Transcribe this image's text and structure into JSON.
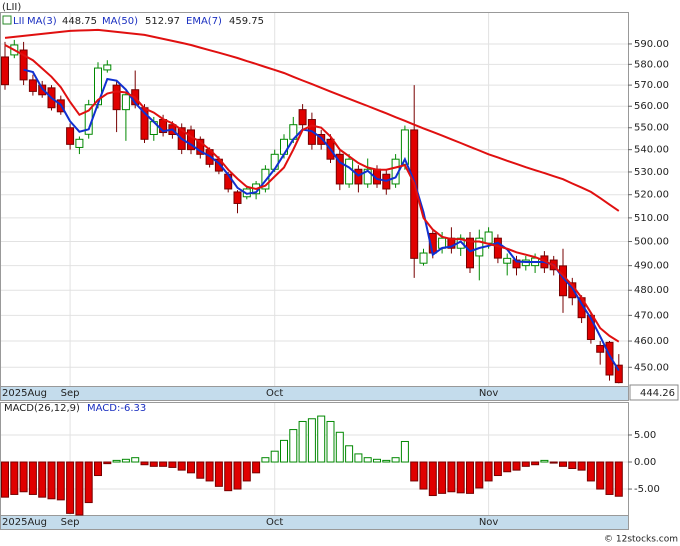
{
  "chart_data": [
    {
      "type": "candlestick",
      "title": "(LII)",
      "symbol": "LII",
      "categories": [
        "2025Aug",
        null,
        null,
        null,
        null,
        null,
        null,
        "Sep",
        null,
        null,
        null,
        null,
        null,
        null,
        null,
        null,
        null,
        null,
        null,
        null,
        null,
        null,
        null,
        null,
        null,
        null,
        null,
        null,
        null,
        "Oct",
        null,
        null,
        null,
        null,
        null,
        null,
        null,
        null,
        null,
        null,
        null,
        null,
        null,
        null,
        null,
        null,
        null,
        null,
        null,
        null,
        null,
        null,
        "Nov",
        null,
        null,
        null,
        null,
        null,
        null,
        null,
        null,
        null,
        null,
        null,
        null,
        null,
        null
      ],
      "open": [
        583.6,
        584.6,
        587,
        572.5,
        570,
        568.7,
        563,
        550,
        541,
        547,
        560.7,
        577.3,
        570,
        558.4,
        567.8,
        559.3,
        546.9,
        553.8,
        551.4,
        550,
        549,
        544.7,
        540,
        535.7,
        529,
        521.2,
        519.1,
        520.4,
        522.5,
        531.2,
        537.9,
        544.7,
        558.4,
        553.8,
        546.9,
        544.7,
        537.9,
        524.7,
        531.2,
        524.7,
        531.2,
        529,
        524.7,
        533.4,
        549,
        491,
        503.4,
        497.2,
        501.4,
        497.2,
        501.4,
        494,
        499.3,
        501.4,
        491,
        492.3,
        490,
        490,
        494,
        492.3,
        489.9,
        483,
        477,
        470,
        458.3,
        459.5,
        450.8
      ],
      "high": [
        591,
        592,
        591,
        575,
        572,
        570,
        565,
        552,
        546,
        563,
        581,
        582,
        572,
        567,
        577,
        561,
        555,
        556,
        553,
        552,
        551,
        546,
        541,
        537,
        530,
        522,
        524,
        526,
        533,
        540,
        547,
        555,
        561,
        557,
        549,
        547,
        540,
        538,
        533,
        536,
        533,
        531,
        538,
        551,
        570,
        497,
        505,
        504,
        506,
        503,
        504,
        505,
        506,
        503,
        495,
        494,
        494,
        495,
        496,
        494,
        497,
        485,
        478,
        471,
        460,
        460,
        455
      ],
      "low": [
        567.8,
        583,
        570,
        565,
        564,
        558,
        556,
        540,
        538,
        545,
        559,
        576,
        548,
        544,
        559,
        543,
        544,
        546,
        545,
        538,
        538,
        536,
        532,
        529,
        521,
        512,
        518,
        518,
        521,
        530,
        536,
        543,
        549,
        540,
        540,
        534,
        522,
        523,
        521,
        523,
        523,
        520,
        523,
        531,
        485,
        490,
        493,
        495,
        495,
        494,
        487,
        484,
        497,
        491,
        486,
        486,
        488,
        487,
        487,
        486,
        471,
        474,
        467,
        459,
        451,
        445,
        444
      ],
      "close": [
        570.2,
        589.5,
        572.5,
        567,
        565.4,
        559.3,
        557.4,
        542.4,
        544.7,
        560.7,
        578.2,
        579.7,
        558.4,
        565.4,
        560.7,
        544.7,
        552.8,
        547.8,
        546.9,
        540.1,
        540,
        537.9,
        533.4,
        530.4,
        522.5,
        516.2,
        522.5,
        524.7,
        531.2,
        537.9,
        544.7,
        551.4,
        551.4,
        542.4,
        542.4,
        535.7,
        524.7,
        535.7,
        524.7,
        531.2,
        524.7,
        522.5,
        535.7,
        549,
        493,
        495.2,
        495.2,
        501.4,
        497.2,
        501.4,
        489.1,
        501.4,
        504,
        493.1,
        493,
        489.1,
        492.3,
        493.1,
        489.1,
        488.3,
        477.8,
        477,
        469.1,
        460.6,
        455.7,
        447.1,
        444.26
      ],
      "up_color": "#008800",
      "down_color": "#e00000",
      "series": [
        {
          "name": "MA(3)",
          "color": "#1030d0",
          "values": [
            null,
            null,
            577.4,
            576.3,
            568.3,
            563.9,
            560.7,
            553.0,
            548.2,
            549.3,
            561.2,
            572.9,
            572.1,
            567.8,
            561.5,
            556.9,
            552.7,
            548.4,
            549.2,
            544.9,
            542.3,
            539.3,
            537.1,
            533.9,
            528.8,
            523.0,
            520.4,
            521.1,
            526.1,
            531.3,
            537.9,
            544.7,
            549.2,
            548.4,
            545.4,
            540.2,
            534.3,
            532.0,
            528.4,
            530.5,
            526.9,
            526.1,
            527.6,
            535.7,
            525.9,
            512.4,
            494.5,
            497.3,
            497.9,
            500.0,
            495.9,
            497.3,
            498.2,
            499.5,
            496.7,
            491.7,
            491.5,
            491.5,
            491.5,
            490.2,
            485.1,
            481.0,
            474.6,
            468.9,
            461.8,
            454.5,
            448.75
          ]
        },
        {
          "name": "MA(50)",
          "color": "#e01010",
          "values": [
            593.0,
            593.5,
            594.0,
            594.5,
            595.0,
            595.5,
            596.0,
            596.5,
            596.7,
            596.8,
            597.0,
            596.5,
            596.0,
            595.5,
            595.0,
            594.5,
            593.5,
            592.5,
            591.5,
            590.5,
            589.5,
            588.2,
            586.9,
            585.7,
            584.4,
            583.1,
            581.6,
            580.2,
            578.7,
            577.3,
            575.8,
            574.0,
            572.2,
            570.5,
            568.7,
            566.9,
            565.2,
            563.5,
            561.8,
            560.1,
            558.4,
            556.7,
            554.9,
            553.2,
            551.4,
            549.7,
            548.1,
            546.4,
            544.7,
            543.0,
            541.3,
            539.6,
            537.9,
            536.5,
            535.0,
            533.6,
            532.1,
            530.8,
            529.5,
            528.1,
            526.8,
            524.9,
            523.1,
            521.2,
            518.5,
            515.7,
            512.97
          ]
        },
        {
          "name": "EMA(7)",
          "color": "#e01010",
          "values": [
            589.5,
            587,
            584.5,
            582,
            578,
            574,
            569,
            562,
            556,
            558,
            563,
            566,
            567,
            566.5,
            564,
            559,
            557,
            554,
            552,
            549,
            546,
            543.5,
            540,
            536,
            531,
            527,
            523.5,
            522.5,
            524,
            528,
            532,
            540,
            549,
            551,
            550,
            546,
            540,
            537,
            534,
            532,
            531,
            531,
            532,
            533,
            525,
            510,
            505,
            502,
            501,
            501,
            500,
            500,
            499,
            498,
            497,
            495.5,
            494.5,
            493.5,
            492,
            490,
            486,
            482,
            477,
            471,
            465,
            462,
            459.75
          ]
        }
      ],
      "ylim": [
        443,
        606
      ],
      "log": true,
      "grid": true,
      "yticks": [
        {
          "value": 450,
          "label": "450.00"
        },
        {
          "value": 460,
          "label": "460.00"
        },
        {
          "value": 470,
          "label": "470.00"
        },
        {
          "value": 480,
          "label": "480.00"
        },
        {
          "value": 490,
          "label": "490.00"
        },
        {
          "value": 500,
          "label": "500.00"
        },
        {
          "value": 510,
          "label": "510.00"
        },
        {
          "value": 520,
          "label": "520.00"
        },
        {
          "value": 530,
          "label": "530.00"
        },
        {
          "value": 540,
          "label": "540.00"
        },
        {
          "value": 550,
          "label": "550.00"
        },
        {
          "value": 560,
          "label": "560.00"
        },
        {
          "value": 570,
          "label": "570.00"
        },
        {
          "value": 580,
          "label": "580.00"
        },
        {
          "value": 590,
          "label": "590.00"
        }
      ]
    },
    {
      "type": "bar",
      "name": "MACD(26,12,9)",
      "current_label": "MACD:-6.33",
      "categories": [
        "2025Aug",
        null,
        null,
        null,
        null,
        null,
        null,
        "Sep",
        null,
        null,
        null,
        null,
        null,
        null,
        null,
        null,
        null,
        null,
        null,
        null,
        null,
        null,
        null,
        null,
        null,
        null,
        null,
        null,
        null,
        "Oct",
        null,
        null,
        null,
        null,
        null,
        null,
        null,
        null,
        null,
        null,
        null,
        null,
        null,
        null,
        null,
        null,
        null,
        null,
        null,
        null,
        null,
        null,
        "Nov",
        null,
        null,
        null,
        null,
        null,
        null,
        null,
        null,
        null,
        null,
        null,
        null,
        null,
        null
      ],
      "values": [
        -6.5,
        -6,
        -5.5,
        -6,
        -6.5,
        -6.8,
        -7,
        -9.5,
        -9.8,
        -7.5,
        -2.5,
        -0.3,
        0.3,
        0.5,
        0.8,
        -0.5,
        -0.8,
        -0.8,
        -1,
        -1.5,
        -2,
        -3,
        -3.5,
        -4.5,
        -5.3,
        -5,
        -3.5,
        -2,
        0.8,
        2,
        4,
        6,
        7.5,
        8,
        8.5,
        7.5,
        5.5,
        3,
        1.5,
        0.8,
        0.5,
        0.3,
        0.8,
        3.8,
        -3.5,
        -5,
        -6.2,
        -5.8,
        -5.5,
        -5.7,
        -5.8,
        -4.8,
        -3.5,
        -2.5,
        -1.8,
        -1.5,
        -0.8,
        -0.5,
        0.3,
        -0.2,
        -0.8,
        -1.2,
        -1.5,
        -3.5,
        -5,
        -6,
        -6.33
      ],
      "up_color": "#008800",
      "down_color": "#e00000",
      "ylim": [
        -9.8,
        11.1
      ],
      "grid": true,
      "yticks": [
        {
          "value": 5,
          "label": "5.00"
        },
        {
          "value": 0,
          "label": "0.00"
        },
        {
          "value": -5,
          "label": "-5.00"
        }
      ]
    }
  ],
  "footer": "© 12stocks.com"
}
